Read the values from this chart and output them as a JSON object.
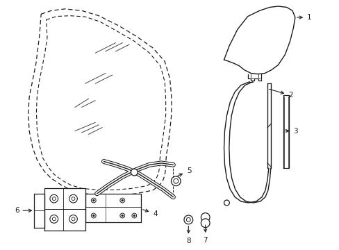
{
  "bg_color": "#ffffff",
  "line_color": "#1a1a1a",
  "figsize": [
    4.89,
    3.6
  ],
  "dpi": 100,
  "xlim": [
    0,
    10
  ],
  "ylim": [
    0,
    7.35
  ]
}
